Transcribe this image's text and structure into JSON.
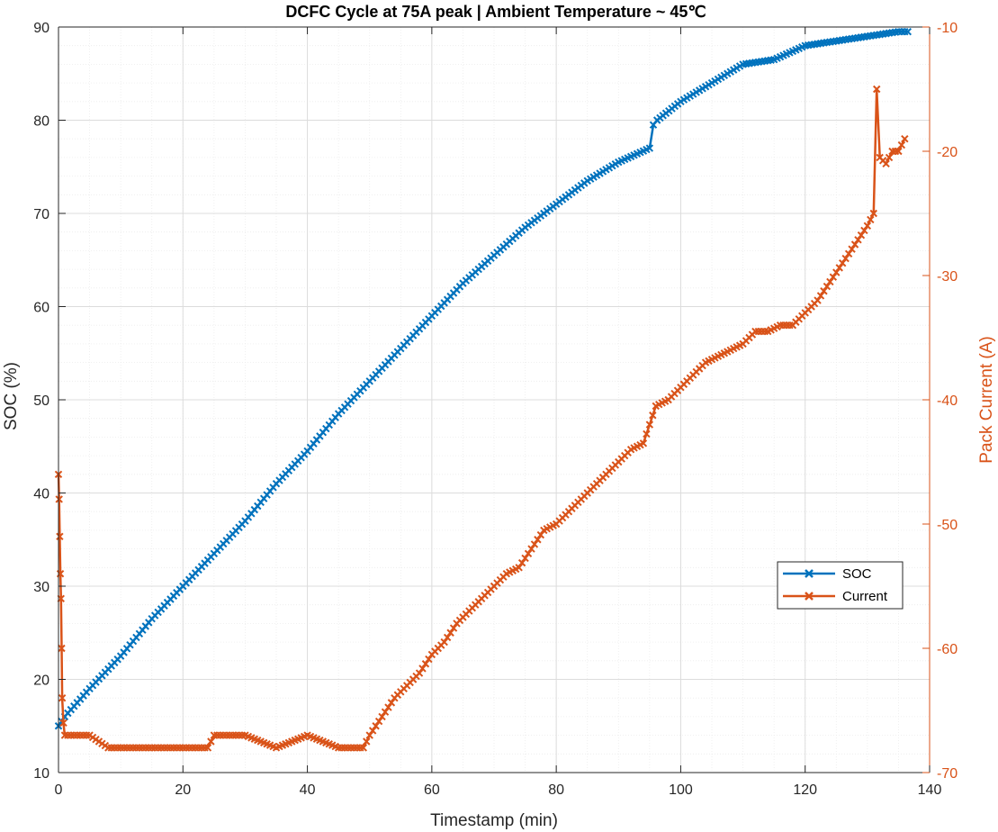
{
  "chart_data": {
    "type": "line",
    "title": "DCFC Cycle at 75A peak | Ambient Temperature ~ 45℃",
    "xlabel": "Timestamp (min)",
    "ylabel_left": "SOC (%)",
    "ylabel_right": "Pack Current (A)",
    "xlim": [
      0,
      140
    ],
    "ylim_left": [
      10,
      90
    ],
    "ylim_right": [
      -70,
      -10
    ],
    "x_ticks": [
      "0",
      "20",
      "40",
      "60",
      "80",
      "100",
      "120",
      "140"
    ],
    "y_left_ticks": [
      "10",
      "20",
      "30",
      "40",
      "50",
      "60",
      "70",
      "80",
      "90"
    ],
    "y_right_ticks": [
      "-70",
      "-60",
      "-50",
      "-40",
      "-30",
      "-20",
      "-10"
    ],
    "grid": true,
    "minor_grid": true,
    "legend_position": "lower-right",
    "marker": "x",
    "colors": {
      "soc": "#0072BD",
      "current": "#D95319",
      "grid": "#dcdcdc",
      "axis": "#262626"
    },
    "series": [
      {
        "name": "SOC",
        "axis": "left",
        "x": [
          0,
          1,
          5,
          10,
          15,
          20,
          25,
          30,
          35,
          40,
          45,
          50,
          55,
          60,
          65,
          70,
          75,
          80,
          85,
          90,
          95,
          95.6,
          96.2,
          100,
          105,
          110,
          115,
          120,
          125,
          130,
          135,
          136.5
        ],
        "y": [
          15,
          16,
          19,
          22.5,
          26.5,
          30,
          33.5,
          37,
          41,
          44.5,
          48.5,
          52,
          55.5,
          59,
          62.5,
          65.5,
          68.5,
          71,
          73.5,
          75.5,
          77,
          79.5,
          80,
          82,
          84,
          86,
          86.5,
          88,
          88.5,
          89,
          89.5,
          89.5
        ]
      },
      {
        "name": "Current",
        "axis": "right",
        "x": [
          0,
          0.1,
          0.2,
          0.3,
          0.4,
          0.5,
          0.6,
          0.8,
          1,
          2,
          5,
          8,
          10,
          15,
          20,
          24,
          25,
          30,
          35,
          40,
          45,
          49,
          50,
          52,
          54,
          56,
          58,
          60,
          62,
          64,
          66,
          68,
          70,
          72,
          74,
          76,
          78,
          80,
          82,
          84,
          86,
          88,
          90,
          92,
          94,
          95,
          96,
          98,
          100,
          102,
          104,
          106,
          108,
          110,
          112,
          114,
          116,
          118,
          120,
          122,
          124,
          126,
          128,
          130,
          131,
          131.5,
          132,
          133,
          134,
          135,
          136
        ],
        "y": [
          -46,
          -48,
          -51,
          -54,
          -56,
          -60,
          -64,
          -66,
          -67,
          -67,
          -67,
          -68,
          -68,
          -68,
          -68,
          -68,
          -67,
          -67,
          -68,
          -67,
          -68,
          -68,
          -67,
          -65.5,
          -64,
          -63,
          -62,
          -60.5,
          -59.5,
          -58,
          -57,
          -56,
          -55,
          -54,
          -53.5,
          -52,
          -50.5,
          -50,
          -49,
          -48,
          -47,
          -46,
          -45,
          -44,
          -43.5,
          -42,
          -40.5,
          -40,
          -39,
          -38,
          -37,
          -36.5,
          -36,
          -35.5,
          -34.5,
          -34.5,
          -34,
          -34,
          -33,
          -32,
          -30.5,
          -29,
          -27.5,
          -26,
          -25,
          -15,
          -20.5,
          -21,
          -20,
          -20,
          -19
        ]
      }
    ]
  }
}
